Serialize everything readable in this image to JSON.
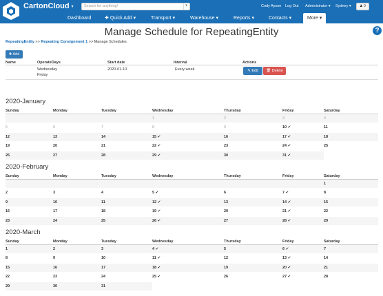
{
  "header": {
    "brand": "CartonCloud",
    "search_placeholder": "Search for anything!",
    "user": "Cody Ayson",
    "logout": "Log Out",
    "role": "Administrator",
    "location": "Sydney",
    "bell_count": "0",
    "nav": [
      "Dashboard",
      "Quick Add",
      "Transport",
      "Warehouse",
      "Reports",
      "Contacts",
      "More"
    ]
  },
  "page": {
    "title": "Manage Schedule for RepeatingEntity",
    "breadcrumb": [
      "RepeatingEntity",
      "Repeating Consignment 1",
      "Manage Schedules"
    ],
    "add_label": "Add"
  },
  "table": {
    "headers": [
      "Name",
      "OperateDays",
      "Start date",
      "Interval",
      "Actions"
    ],
    "row": {
      "name": "",
      "days": [
        "Wednesday",
        "Friday"
      ],
      "start": "2020-01-10",
      "interval": "Every week"
    },
    "edit_label": "Edit",
    "delete_label": "Delete"
  },
  "weekdays": [
    "Sunday",
    "Monday",
    "Tuesday",
    "Wednesday",
    "Thursday",
    "Friday",
    "Saturday"
  ],
  "calendars": [
    {
      "title": "2020-January",
      "weeks": [
        [
          {
            "d": "",
            "o": true
          },
          {
            "d": "",
            "o": true
          },
          {
            "d": "",
            "o": true
          },
          {
            "d": "1",
            "o": true
          },
          {
            "d": "2",
            "o": true
          },
          {
            "d": "3",
            "o": true
          },
          {
            "d": "4",
            "o": true
          }
        ],
        [
          {
            "d": "5",
            "o": true
          },
          {
            "d": "6",
            "o": true
          },
          {
            "d": "7",
            "o": true
          },
          {
            "d": "8",
            "o": true
          },
          {
            "d": "9",
            "o": true
          },
          {
            "d": "10",
            "c": true
          },
          {
            "d": "11"
          }
        ],
        [
          {
            "d": "12"
          },
          {
            "d": "13"
          },
          {
            "d": "14"
          },
          {
            "d": "15",
            "c": true
          },
          {
            "d": "16"
          },
          {
            "d": "17",
            "c": true
          },
          {
            "d": "18"
          }
        ],
        [
          {
            "d": "19"
          },
          {
            "d": "20"
          },
          {
            "d": "21"
          },
          {
            "d": "22",
            "c": true
          },
          {
            "d": "23"
          },
          {
            "d": "24",
            "c": true
          },
          {
            "d": "25"
          }
        ],
        [
          {
            "d": "26"
          },
          {
            "d": "27"
          },
          {
            "d": "28"
          },
          {
            "d": "29",
            "c": true
          },
          {
            "d": "30"
          },
          {
            "d": "31",
            "c": true
          }
        ]
      ]
    },
    {
      "title": "2020-February",
      "weeks": [
        [
          {
            "d": ""
          },
          {
            "d": ""
          },
          {
            "d": ""
          },
          {
            "d": ""
          },
          {
            "d": ""
          },
          {
            "d": ""
          },
          {
            "d": "1"
          }
        ],
        [
          {
            "d": "2"
          },
          {
            "d": "3"
          },
          {
            "d": "4"
          },
          {
            "d": "5",
            "c": true
          },
          {
            "d": "6"
          },
          {
            "d": "7",
            "c": true
          },
          {
            "d": "8"
          }
        ],
        [
          {
            "d": "9"
          },
          {
            "d": "10"
          },
          {
            "d": "11"
          },
          {
            "d": "12",
            "c": true
          },
          {
            "d": "13"
          },
          {
            "d": "14",
            "c": true
          },
          {
            "d": "15"
          }
        ],
        [
          {
            "d": "16"
          },
          {
            "d": "17"
          },
          {
            "d": "18"
          },
          {
            "d": "19",
            "c": true
          },
          {
            "d": "20"
          },
          {
            "d": "21",
            "c": true
          },
          {
            "d": "22"
          }
        ],
        [
          {
            "d": "23"
          },
          {
            "d": "24"
          },
          {
            "d": "25"
          },
          {
            "d": "26",
            "c": true
          },
          {
            "d": "27"
          },
          {
            "d": "28",
            "c": true
          },
          {
            "d": "29"
          }
        ]
      ]
    },
    {
      "title": "2020-March",
      "weeks": [
        [
          {
            "d": "1"
          },
          {
            "d": "2"
          },
          {
            "d": "3"
          },
          {
            "d": "4",
            "c": true
          },
          {
            "d": "5"
          },
          {
            "d": "6",
            "c": true
          },
          {
            "d": "7"
          }
        ],
        [
          {
            "d": "8"
          },
          {
            "d": "9"
          },
          {
            "d": "10"
          },
          {
            "d": "11",
            "c": true
          },
          {
            "d": "12"
          },
          {
            "d": "13",
            "c": true
          },
          {
            "d": "14"
          }
        ],
        [
          {
            "d": "15"
          },
          {
            "d": "16"
          },
          {
            "d": "17"
          },
          {
            "d": "18",
            "c": true
          },
          {
            "d": "19"
          },
          {
            "d": "20",
            "c": true
          },
          {
            "d": "21"
          }
        ],
        [
          {
            "d": "22"
          },
          {
            "d": "23"
          },
          {
            "d": "24"
          },
          {
            "d": "25",
            "c": true
          },
          {
            "d": "26"
          },
          {
            "d": "27",
            "c": true
          },
          {
            "d": "28"
          }
        ],
        [
          {
            "d": "29"
          },
          {
            "d": "30"
          },
          {
            "d": "31"
          }
        ]
      ]
    }
  ]
}
